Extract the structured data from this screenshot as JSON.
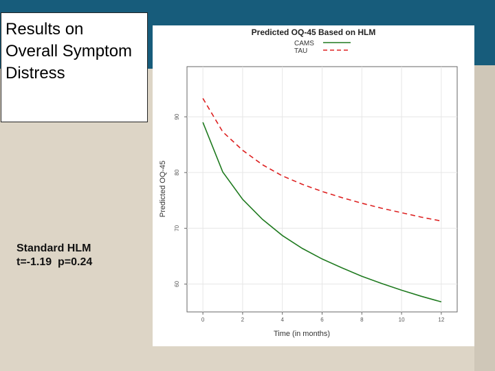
{
  "slide": {
    "title_lines": [
      "Results on",
      "Overall Symptom",
      "Distress"
    ],
    "stats_lines": [
      "Standard HLM",
      "t=-1.19  p=0.24"
    ]
  },
  "chart_data": {
    "type": "line",
    "title": "Predicted OQ-45 Based on HLM",
    "xlabel": "Time (in months)",
    "ylabel": "Predicted OQ-45",
    "xlim": [
      -0.8,
      12.8
    ],
    "ylim": [
      55,
      99
    ],
    "xticks": [
      0,
      2,
      4,
      6,
      8,
      10,
      12
    ],
    "yticks": [
      60,
      70,
      80,
      90
    ],
    "grid": true,
    "legend_position": "top",
    "series": [
      {
        "name": "CAMS",
        "color": "#1f7a1f",
        "dash": "solid",
        "x": [
          0,
          1,
          2,
          3,
          4,
          5,
          6,
          7,
          8,
          9,
          10,
          11,
          12
        ],
        "values": [
          89,
          80.1,
          75.2,
          71.6,
          68.7,
          66.4,
          64.5,
          62.9,
          61.4,
          60.1,
          58.9,
          57.8,
          56.8
        ]
      },
      {
        "name": "TAU",
        "color": "#dd2020",
        "dash": "dashed",
        "x": [
          0,
          1,
          2,
          3,
          4,
          5,
          6,
          7,
          8,
          9,
          10,
          11,
          12
        ],
        "values": [
          93.3,
          87.3,
          84,
          81.4,
          79.4,
          77.9,
          76.6,
          75.5,
          74.5,
          73.6,
          72.8,
          72,
          71.3
        ]
      }
    ]
  }
}
